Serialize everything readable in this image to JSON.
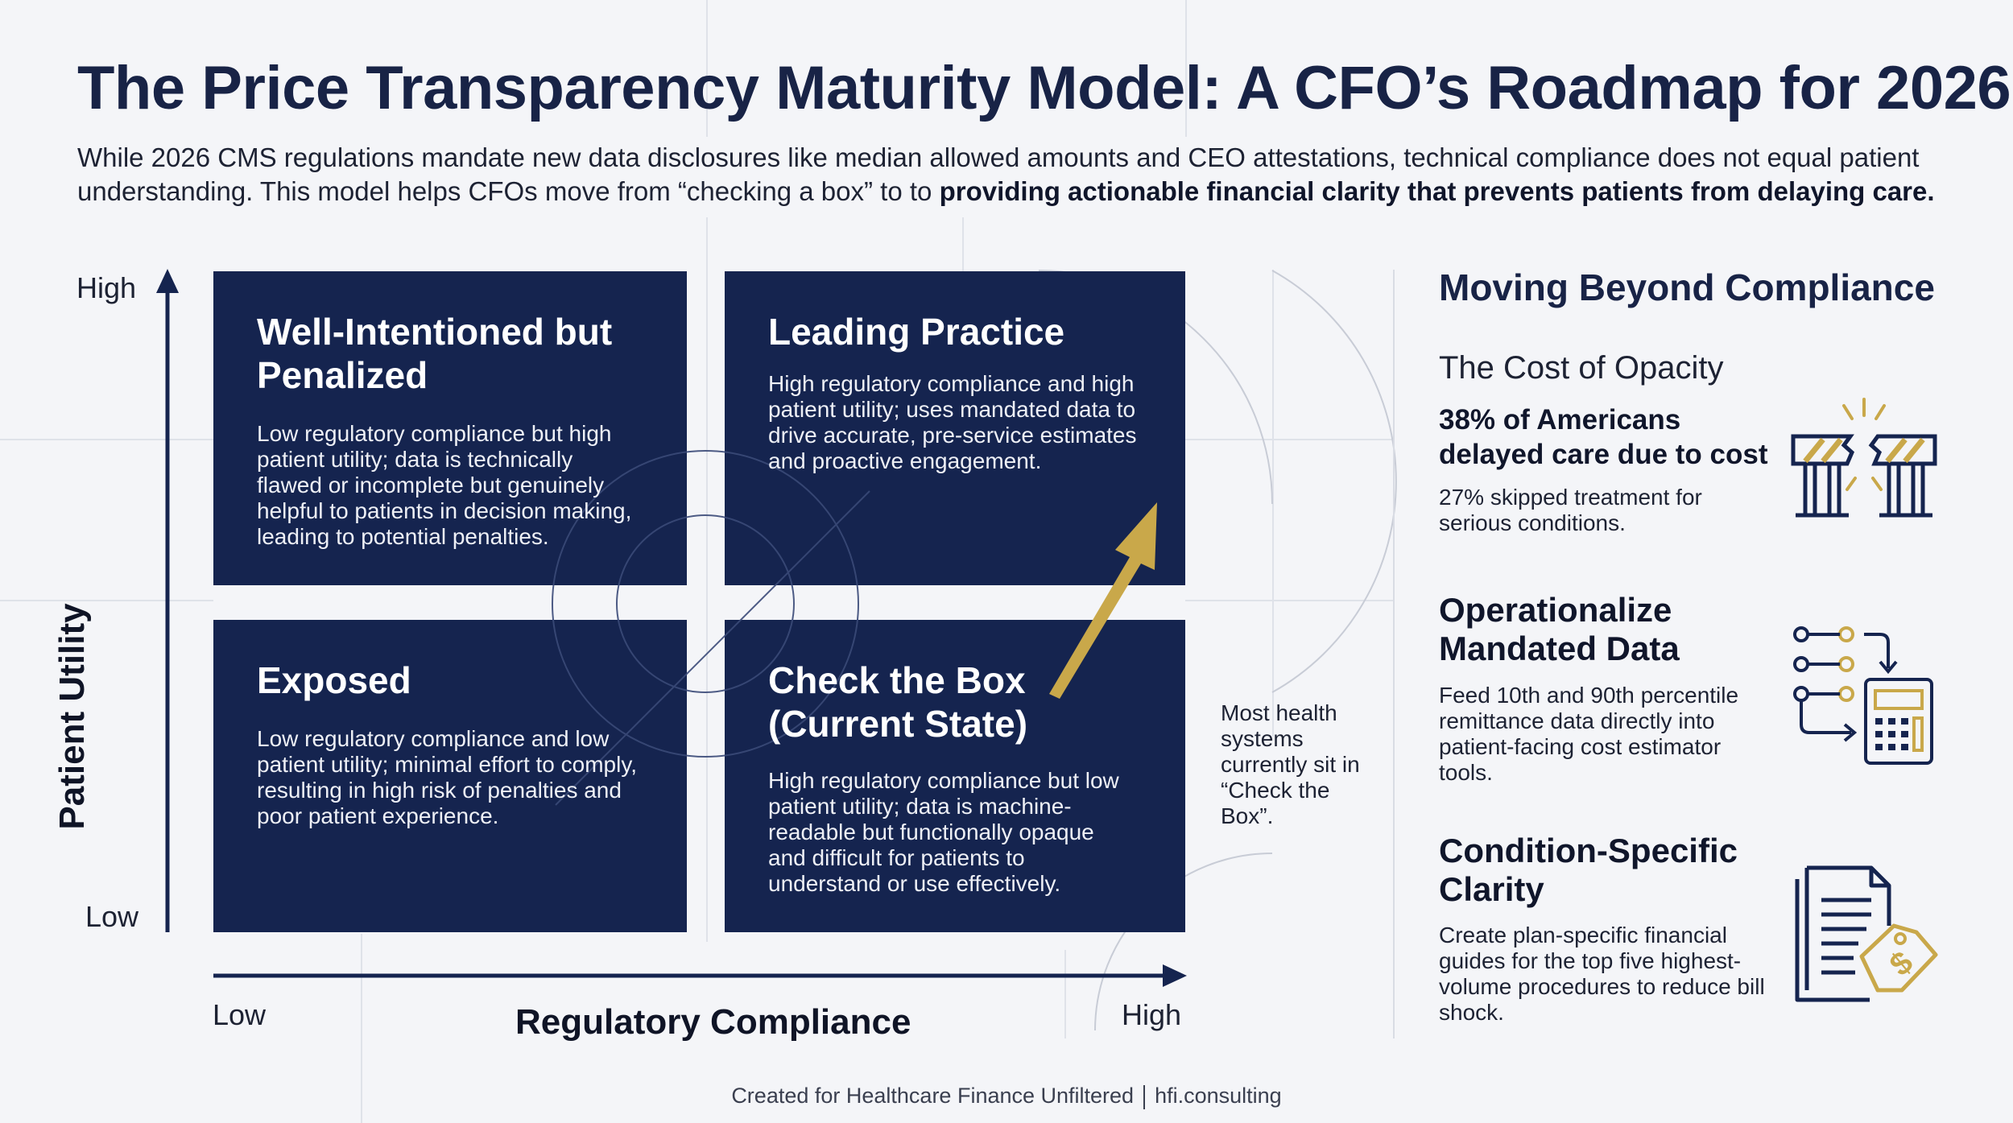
{
  "title": "The Price Transparency Maturity Model: A CFO’s Roadmap for 2026",
  "intro": {
    "normal": "While 2026 CMS regulations mandate new data disclosures like median allowed amounts and CEO attestations, technical compliance does not equal patient understanding. This model helps CFOs move from “checking a box” to to ",
    "bold": "providing actionable financial clarity that prevents patients from delaying care."
  },
  "axes": {
    "y_label": "Patient Utility",
    "y_high": "High",
    "y_low": "Low",
    "x_label": "Regulatory Compliance",
    "x_low": "Low",
    "x_high": "High"
  },
  "quadrants": {
    "top_left": {
      "title": "Well-Intentioned but Penalized",
      "desc": "Low regulatory compliance but high patient utility; data is technically flawed or incomplete but genuinely helpful to patients in decision making, leading to potential penalties."
    },
    "top_right": {
      "title": "Leading Practice",
      "desc": "High regulatory compliance and high patient utility; uses mandated data to drive accurate, pre-service estimates and proactive engagement."
    },
    "bottom_left": {
      "title": "Exposed",
      "desc": "Low regulatory compliance and low patient utility; minimal effort to comply, resulting in high risk of penalties and poor patient experience."
    },
    "bottom_right": {
      "title": "Check the Box (Current State)",
      "desc": "High regulatory compliance but low patient utility; data is machine-readable but functionally opaque and difficult for patients to understand or use effectively."
    }
  },
  "note": "Most health systems currently sit in “Check the Box”.",
  "side": {
    "heading": "Moving Beyond Compliance",
    "cost": {
      "subtitle": "The Cost of Opacity",
      "stat": "38% of Americans delayed care due to cost",
      "detail": "27% skipped treatment for serious conditions.",
      "icon": "broken-barrier-icon"
    },
    "operationalize": {
      "title": "Operationalize Mandated Data",
      "desc": "Feed 10th and 90th percentile remittance data directly into patient-facing cost estimator tools.",
      "icon": "data-to-calculator-icon"
    },
    "clarity": {
      "title": "Condition-Specific Clarity",
      "desc": "Create plan-specific financial guides for the top five highest-volume procedures to reduce bill shock.",
      "icon": "document-price-tag-icon"
    }
  },
  "footer": {
    "left": "Created for Healthcare Finance Unfiltered",
    "right": "hfi.consulting"
  },
  "colors": {
    "navy": "#15244f",
    "gold": "#c9a84a",
    "title": "#182346"
  }
}
